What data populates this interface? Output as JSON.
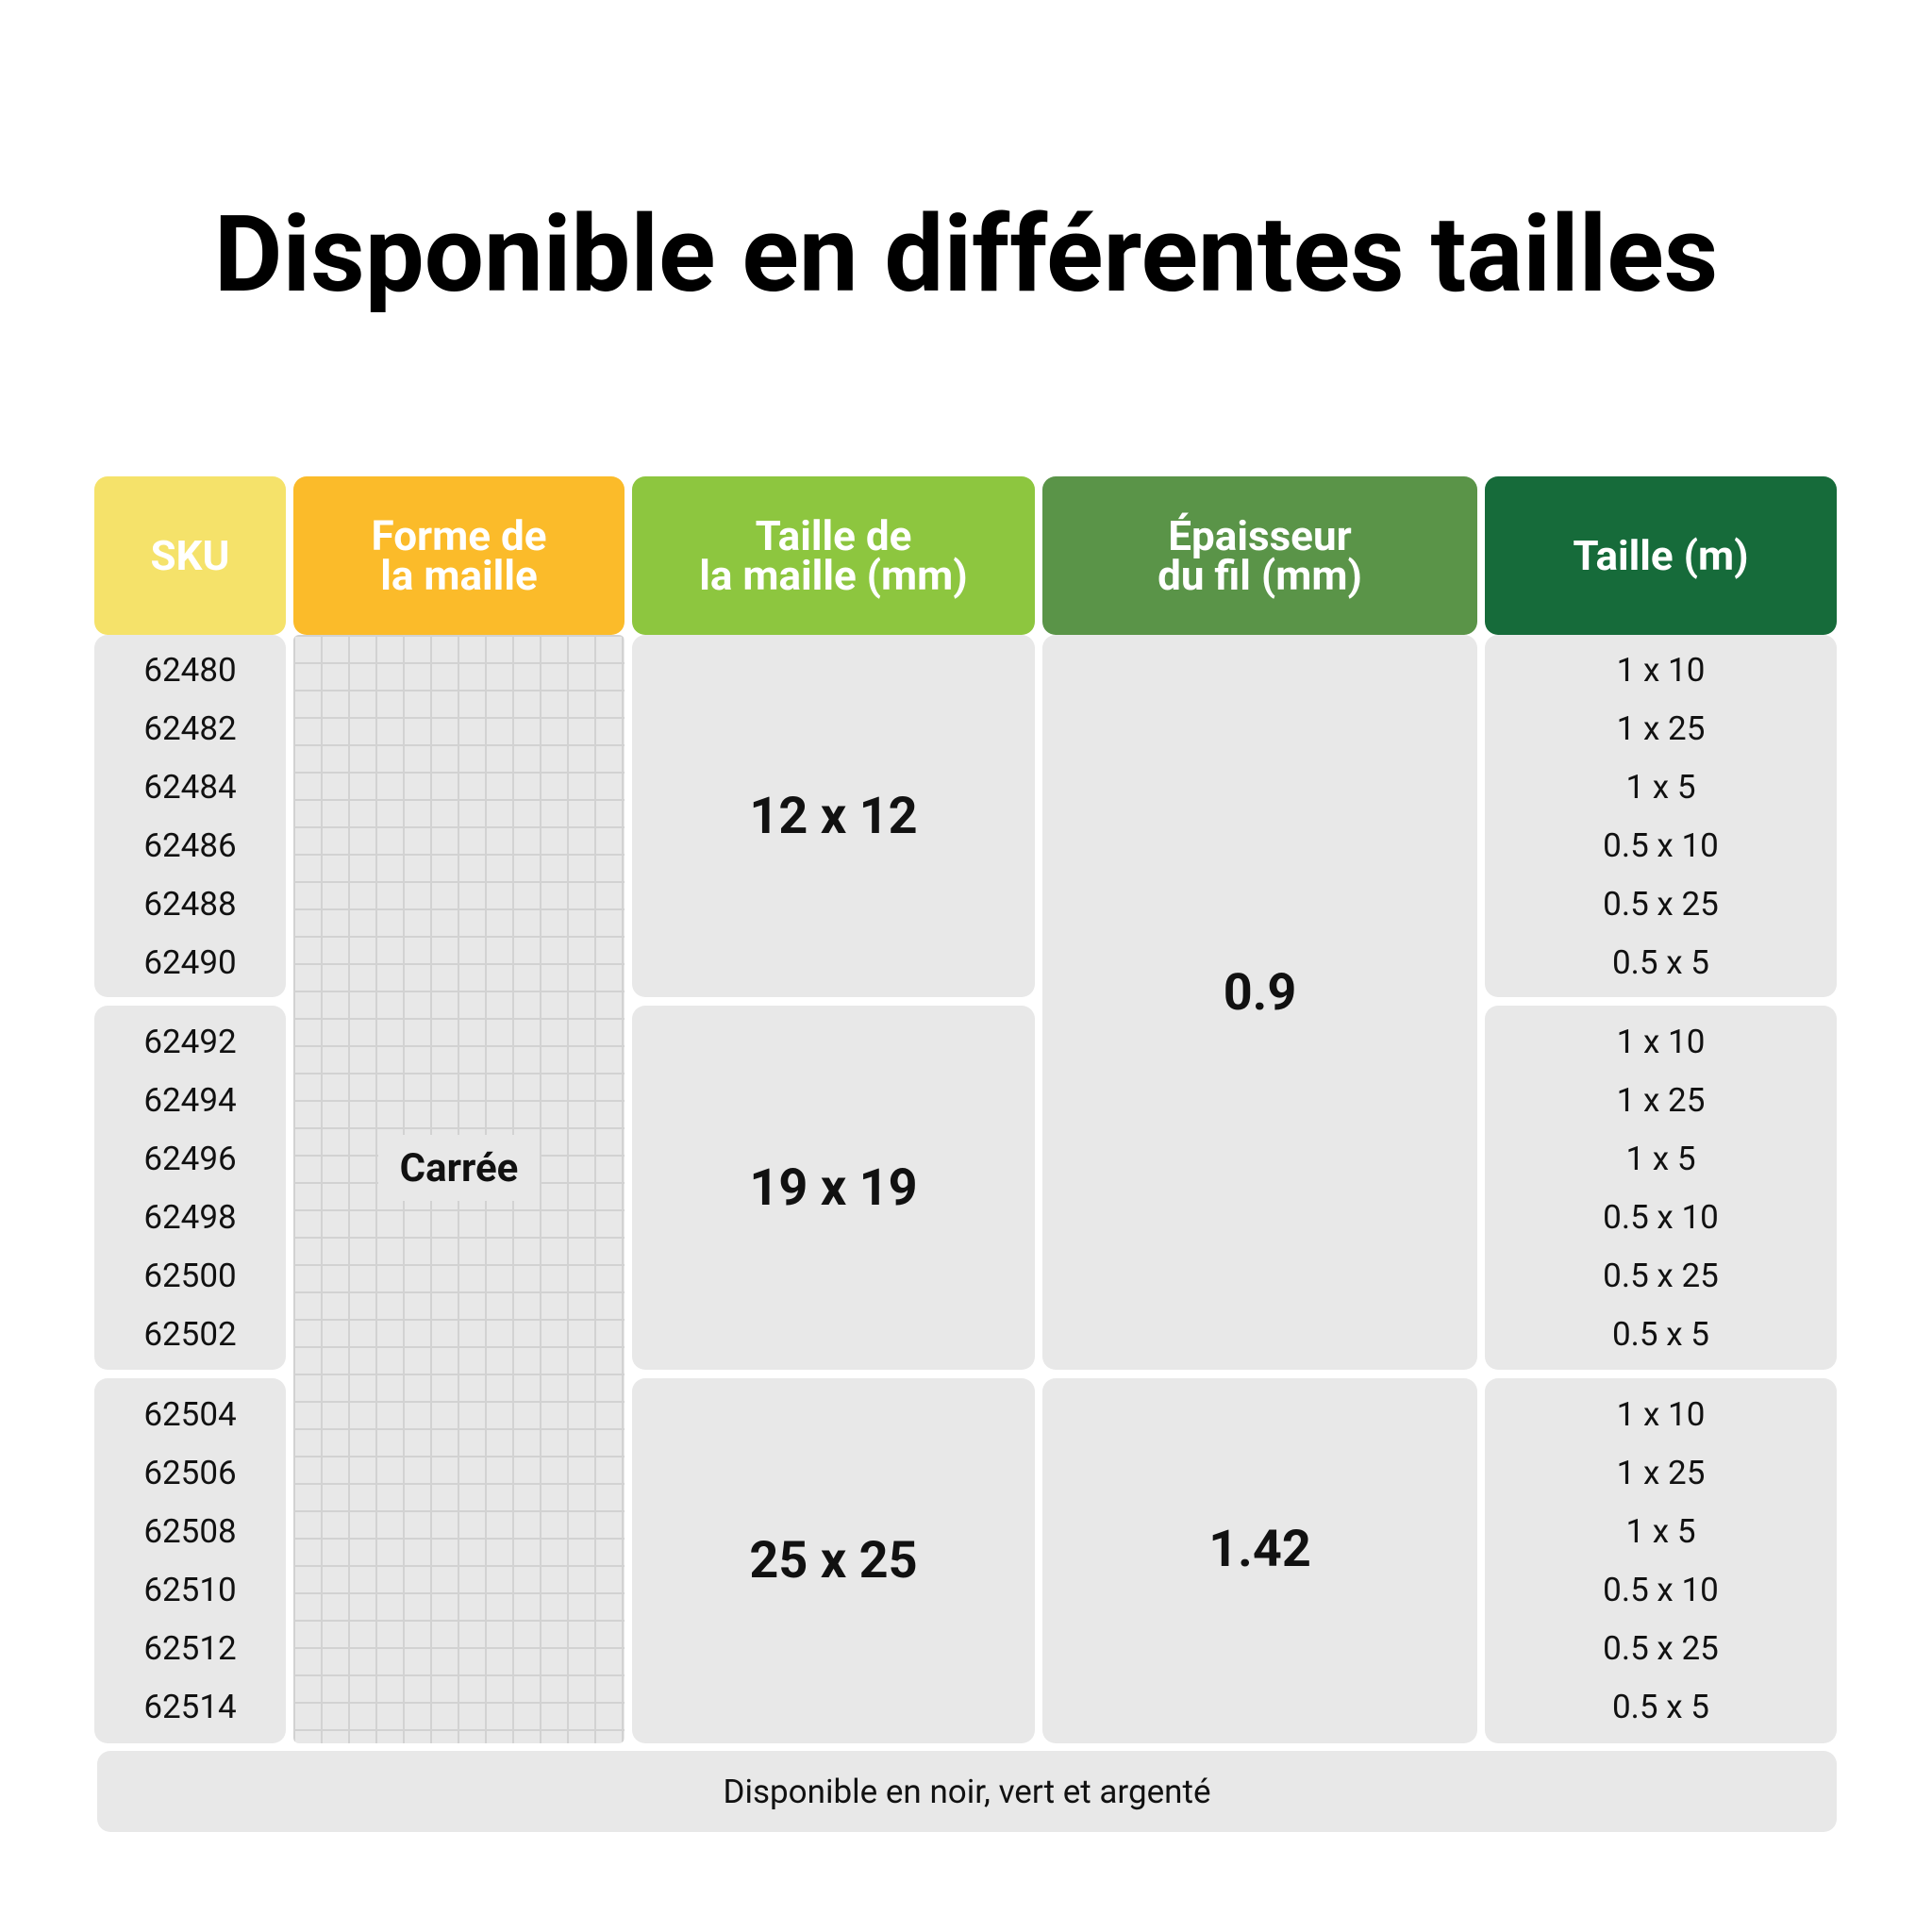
{
  "title": "Disponible en différentes tailles",
  "table": {
    "headers": [
      "SKU",
      "Forme de\nla maille",
      "Taille de\nla maille (mm)",
      "Épaisseur\ndu fil (mm)",
      "Taille (m)"
    ],
    "shape": "Carrée",
    "groups": [
      {
        "skus": [
          "62480",
          "62482",
          "62484",
          "62486",
          "62488",
          "62490"
        ],
        "mesh_size": "12 x 12",
        "sizes": [
          "1 x 10",
          "1 x 25",
          "1 x 5",
          "0.5 x 10",
          "0.5 x 25",
          "0.5 x 5"
        ]
      },
      {
        "skus": [
          "62492",
          "62494",
          "62496",
          "62498",
          "62500",
          "62502"
        ],
        "mesh_size": "19 x 19",
        "sizes": [
          "1 x 10",
          "1 x 25",
          "1 x 5",
          "0.5 x 10",
          "0.5 x 25",
          "0.5 x 5"
        ]
      },
      {
        "skus": [
          "62504",
          "62506",
          "62508",
          "62510",
          "62512",
          "62514"
        ],
        "mesh_size": "25 x 25",
        "sizes": [
          "1 x 10",
          "1 x 25",
          "1 x 5",
          "0.5 x 10",
          "0.5 x 25",
          "0.5 x 5"
        ]
      }
    ],
    "thickness": [
      "0.9",
      "1.42"
    ]
  },
  "footer": "Disponible en noir, vert et argenté"
}
